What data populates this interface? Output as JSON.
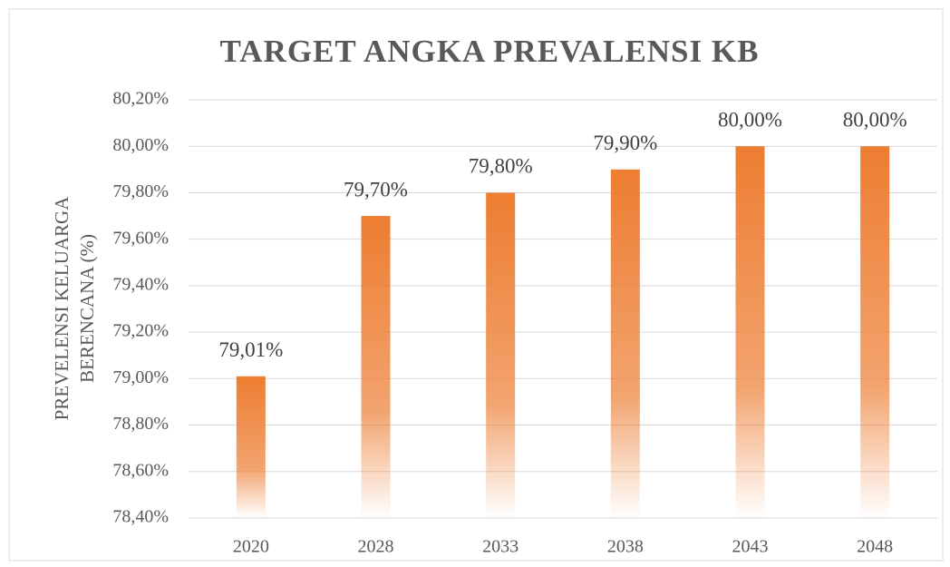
{
  "chart_data": {
    "type": "bar",
    "title": "TARGET ANGKA PREVALENSI KB",
    "y_label": [
      "PREVELENSI KELUARGA",
      "BERENCANA (%)"
    ],
    "categories": [
      "2020",
      "2028",
      "2033",
      "2038",
      "2043",
      "2048"
    ],
    "values": [
      79.01,
      79.7,
      79.8,
      79.9,
      80.0,
      80.0
    ],
    "value_labels": [
      "79,01%",
      "79,70%",
      "79,80%",
      "79,90%",
      "80,00%",
      "80,00%"
    ],
    "color": "#ed7d31",
    "ylim": [
      78.4,
      80.2
    ],
    "yticks": [
      {
        "value": 78.4,
        "label": "78,40%"
      },
      {
        "value": 78.6,
        "label": "78,60%"
      },
      {
        "value": 78.8,
        "label": "78,80%"
      },
      {
        "value": 79.0,
        "label": "79,00%"
      },
      {
        "value": 79.2,
        "label": "79,20%"
      },
      {
        "value": 79.4,
        "label": "79,40%"
      },
      {
        "value": 79.6,
        "label": "79,60%"
      },
      {
        "value": 79.8,
        "label": "79,80%"
      },
      {
        "value": 80.0,
        "label": "80,00%"
      },
      {
        "value": 80.2,
        "label": "80,20%"
      }
    ],
    "grid": true
  }
}
